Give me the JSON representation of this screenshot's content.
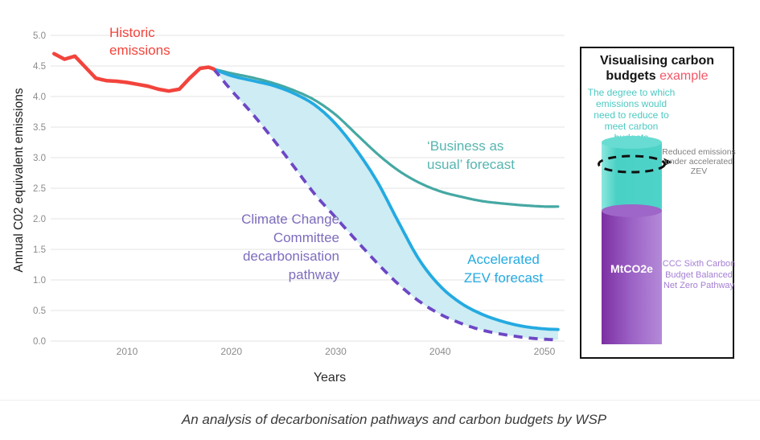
{
  "caption": "An analysis of decarbonisation pathways and carbon budgets by WSP",
  "chart": {
    "y_axis_title": "Annual C02 equivalent emissions",
    "x_axis_title": "Years",
    "labels": {
      "historic": "Historic emissions",
      "bau": "‘Business as usual’ forecast",
      "ccc": "Climate Change Committee decarbonisation pathway",
      "zev": "Accelerated ZEV forecast"
    }
  },
  "chart_data": {
    "type": "line",
    "title": "",
    "xlabel": "Years",
    "ylabel": "Annual C02 equivalent emissions",
    "x_ticks": [
      2010,
      2020,
      2030,
      2040,
      2050
    ],
    "y_ticks": [
      0,
      0.5,
      1,
      1.5,
      2,
      2.5,
      3,
      3.5,
      4,
      4.5,
      5
    ],
    "xlim": [
      2002.5,
      2051.5
    ],
    "ylim": [
      0,
      5
    ],
    "grid": true,
    "legend_position": "inline-annotations",
    "series": [
      {
        "id": "historic",
        "name": "Historic emissions",
        "color": "#f2443c",
        "style": "solid",
        "x": [
          2003,
          2004,
          2005,
          2006,
          2007,
          2008,
          2009,
          2010,
          2011,
          2012,
          2013,
          2014,
          2015,
          2016,
          2017,
          2017.8,
          2018.3
        ],
        "y": [
          4.7,
          4.61,
          4.66,
          4.48,
          4.3,
          4.26,
          4.25,
          4.23,
          4.2,
          4.17,
          4.12,
          4.09,
          4.12,
          4.3,
          4.46,
          4.48,
          4.45
        ]
      },
      {
        "id": "bau",
        "name": "‘Business as usual’ forecast",
        "color": "#45a8a3",
        "style": "solid",
        "x": [
          2018.3,
          2020,
          2022,
          2024,
          2026,
          2028,
          2030,
          2032,
          2034,
          2036,
          2038,
          2040,
          2042,
          2044,
          2046,
          2048,
          2050,
          2051.3
        ],
        "y": [
          4.45,
          4.38,
          4.31,
          4.22,
          4.1,
          3.94,
          3.7,
          3.38,
          3.06,
          2.79,
          2.59,
          2.45,
          2.36,
          2.29,
          2.25,
          2.22,
          2.2,
          2.2
        ]
      },
      {
        "id": "zev",
        "name": "Accelerated ZEV forecast",
        "color": "#24aae1",
        "style": "solid",
        "x": [
          2018.3,
          2020,
          2022,
          2024,
          2026,
          2028,
          2030,
          2032,
          2034,
          2036,
          2038,
          2040,
          2042,
          2044,
          2046,
          2048,
          2050,
          2051.3
        ],
        "y": [
          4.45,
          4.34,
          4.26,
          4.18,
          4.05,
          3.86,
          3.55,
          3.12,
          2.6,
          1.95,
          1.33,
          0.9,
          0.62,
          0.44,
          0.32,
          0.24,
          0.2,
          0.19
        ]
      },
      {
        "id": "ccc",
        "name": "Climate Change Committee decarbonisation pathway",
        "color": "#6d47c5",
        "style": "dashed",
        "x": [
          2018.3,
          2020,
          2022,
          2024,
          2026,
          2028,
          2030,
          2032,
          2034,
          2036,
          2038,
          2040,
          2042,
          2044,
          2046,
          2048,
          2050,
          2051.3
        ],
        "y": [
          4.45,
          4.1,
          3.72,
          3.3,
          2.85,
          2.4,
          2.02,
          1.64,
          1.27,
          0.93,
          0.65,
          0.44,
          0.29,
          0.18,
          0.11,
          0.06,
          0.03,
          0.02
        ]
      }
    ],
    "band": {
      "upper": "zev",
      "lower": "ccc",
      "color": "#cdecf3"
    }
  },
  "panel": {
    "title_main": "Visualising carbon budgets",
    "title_accent": "example",
    "teal_note": "The degree to which emissions would need to reduce to meet carbon budgets",
    "reduced_note": "Reduced emissions under accelerated ZEV",
    "cylinder_label": "MtCO2e",
    "ccc_note": "CCC Sixth Carbon Budget Balanced Net Zero Pathway"
  },
  "colors": {
    "historic": "#f2443c",
    "bau": "#45a8a3",
    "zev": "#24aae1",
    "ccc": "#6d47c5",
    "band": "#cdecf3",
    "grid": "#e3e3e3",
    "tick": "#8b8b8b",
    "bau_label": "#56b5af",
    "ccc_label": "#7e6cbd",
    "panel_accent": "#f25767",
    "panel_teal_text": "#4cc9c2",
    "panel_gray_text": "#7f7f7f",
    "panel_purple_text": "#a47fd4",
    "cylinder_teal": "#49d1c5",
    "cylinder_purple_left": "#7c2fa2",
    "cylinder_purple_right": "#b48ad8"
  }
}
